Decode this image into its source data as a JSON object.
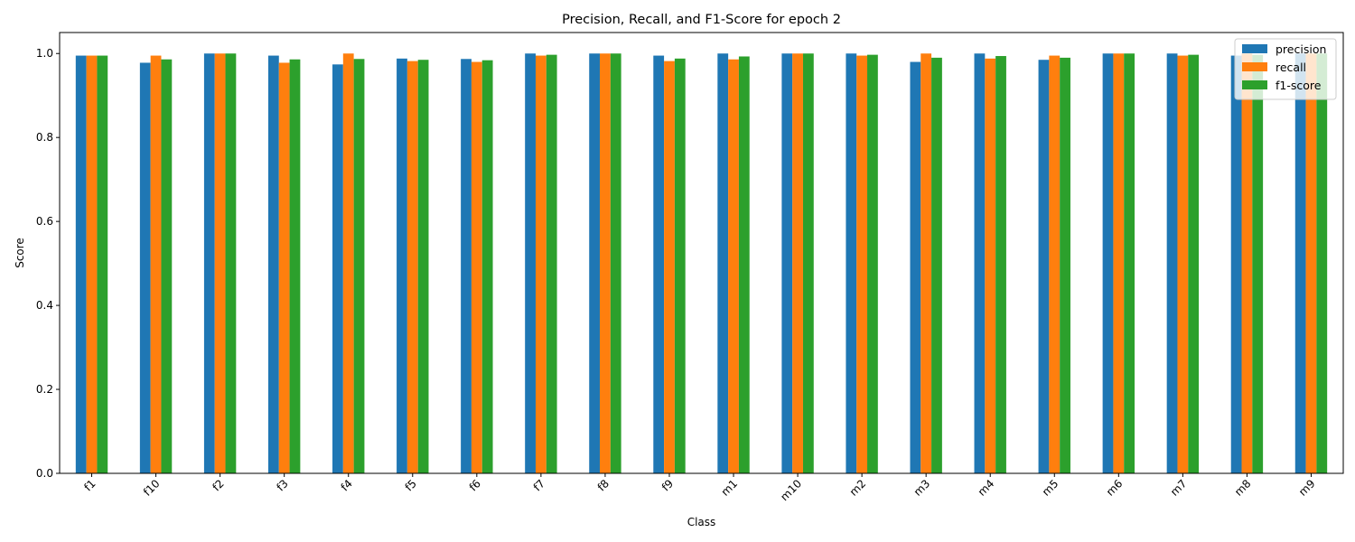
{
  "chart_data": {
    "type": "bar",
    "title": "Precision, Recall, and F1-Score for epoch 2",
    "xlabel": "Class",
    "ylabel": "Score",
    "ylim": [
      0,
      1.05
    ],
    "yticks": [
      "0.0",
      "0.2",
      "0.4",
      "0.6",
      "0.8",
      "1.0"
    ],
    "ytick_values": [
      0,
      0.2,
      0.4,
      0.6,
      0.8,
      1.0
    ],
    "legend_position": "top-right",
    "grid": false,
    "categories": [
      "f1",
      "f10",
      "f2",
      "f3",
      "f4",
      "f5",
      "f6",
      "f7",
      "f8",
      "f9",
      "m1",
      "m10",
      "m2",
      "m3",
      "m4",
      "m5",
      "m6",
      "m7",
      "m8",
      "m9"
    ],
    "series": [
      {
        "name": "precision",
        "color": "#1f77b4",
        "values": [
          0.995,
          0.978,
          1.0,
          0.995,
          0.974,
          0.988,
          0.987,
          1.0,
          1.0,
          0.995,
          1.0,
          1.0,
          1.0,
          0.98,
          1.0,
          0.985,
          1.0,
          1.0,
          0.995,
          1.0
        ]
      },
      {
        "name": "recall",
        "color": "#ff7f0e",
        "values": [
          0.995,
          0.995,
          1.0,
          0.978,
          1.0,
          0.982,
          0.98,
          0.995,
          1.0,
          0.982,
          0.986,
          1.0,
          0.995,
          1.0,
          0.988,
          0.995,
          1.0,
          0.995,
          1.0,
          1.0
        ]
      },
      {
        "name": "f1-score",
        "color": "#2ca02c",
        "values": [
          0.995,
          0.986,
          1.0,
          0.986,
          0.987,
          0.985,
          0.984,
          0.997,
          1.0,
          0.988,
          0.993,
          1.0,
          0.997,
          0.99,
          0.994,
          0.99,
          1.0,
          0.997,
          0.997,
          1.0
        ]
      }
    ]
  }
}
